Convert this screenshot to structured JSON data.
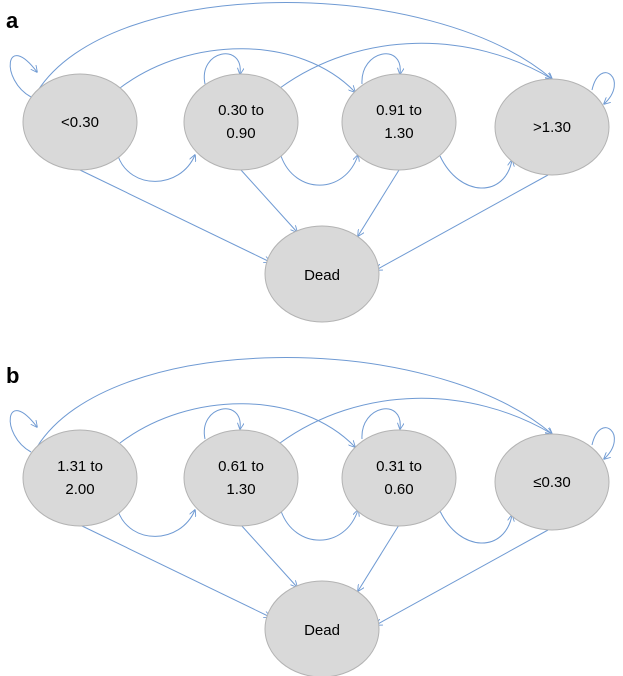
{
  "style": {
    "node_fill": "#d9d9d9",
    "edge_color": "#6f9ad3"
  },
  "panels": [
    {
      "label": "a",
      "states": [
        {
          "lines": [
            "<0.30"
          ]
        },
        {
          "lines": [
            "0.30 to",
            "0.90"
          ]
        },
        {
          "lines": [
            "0.91 to",
            "1.30"
          ]
        },
        {
          "lines": [
            ">1.30"
          ]
        }
      ],
      "dead": "Dead"
    },
    {
      "label": "b",
      "states": [
        {
          "lines": [
            "1.31 to",
            "2.00"
          ]
        },
        {
          "lines": [
            "0.61 to",
            "1.30"
          ]
        },
        {
          "lines": [
            "0.31 to",
            "0.60"
          ]
        },
        {
          "lines": [
            "≤0.30"
          ]
        }
      ],
      "dead": "Dead"
    }
  ]
}
